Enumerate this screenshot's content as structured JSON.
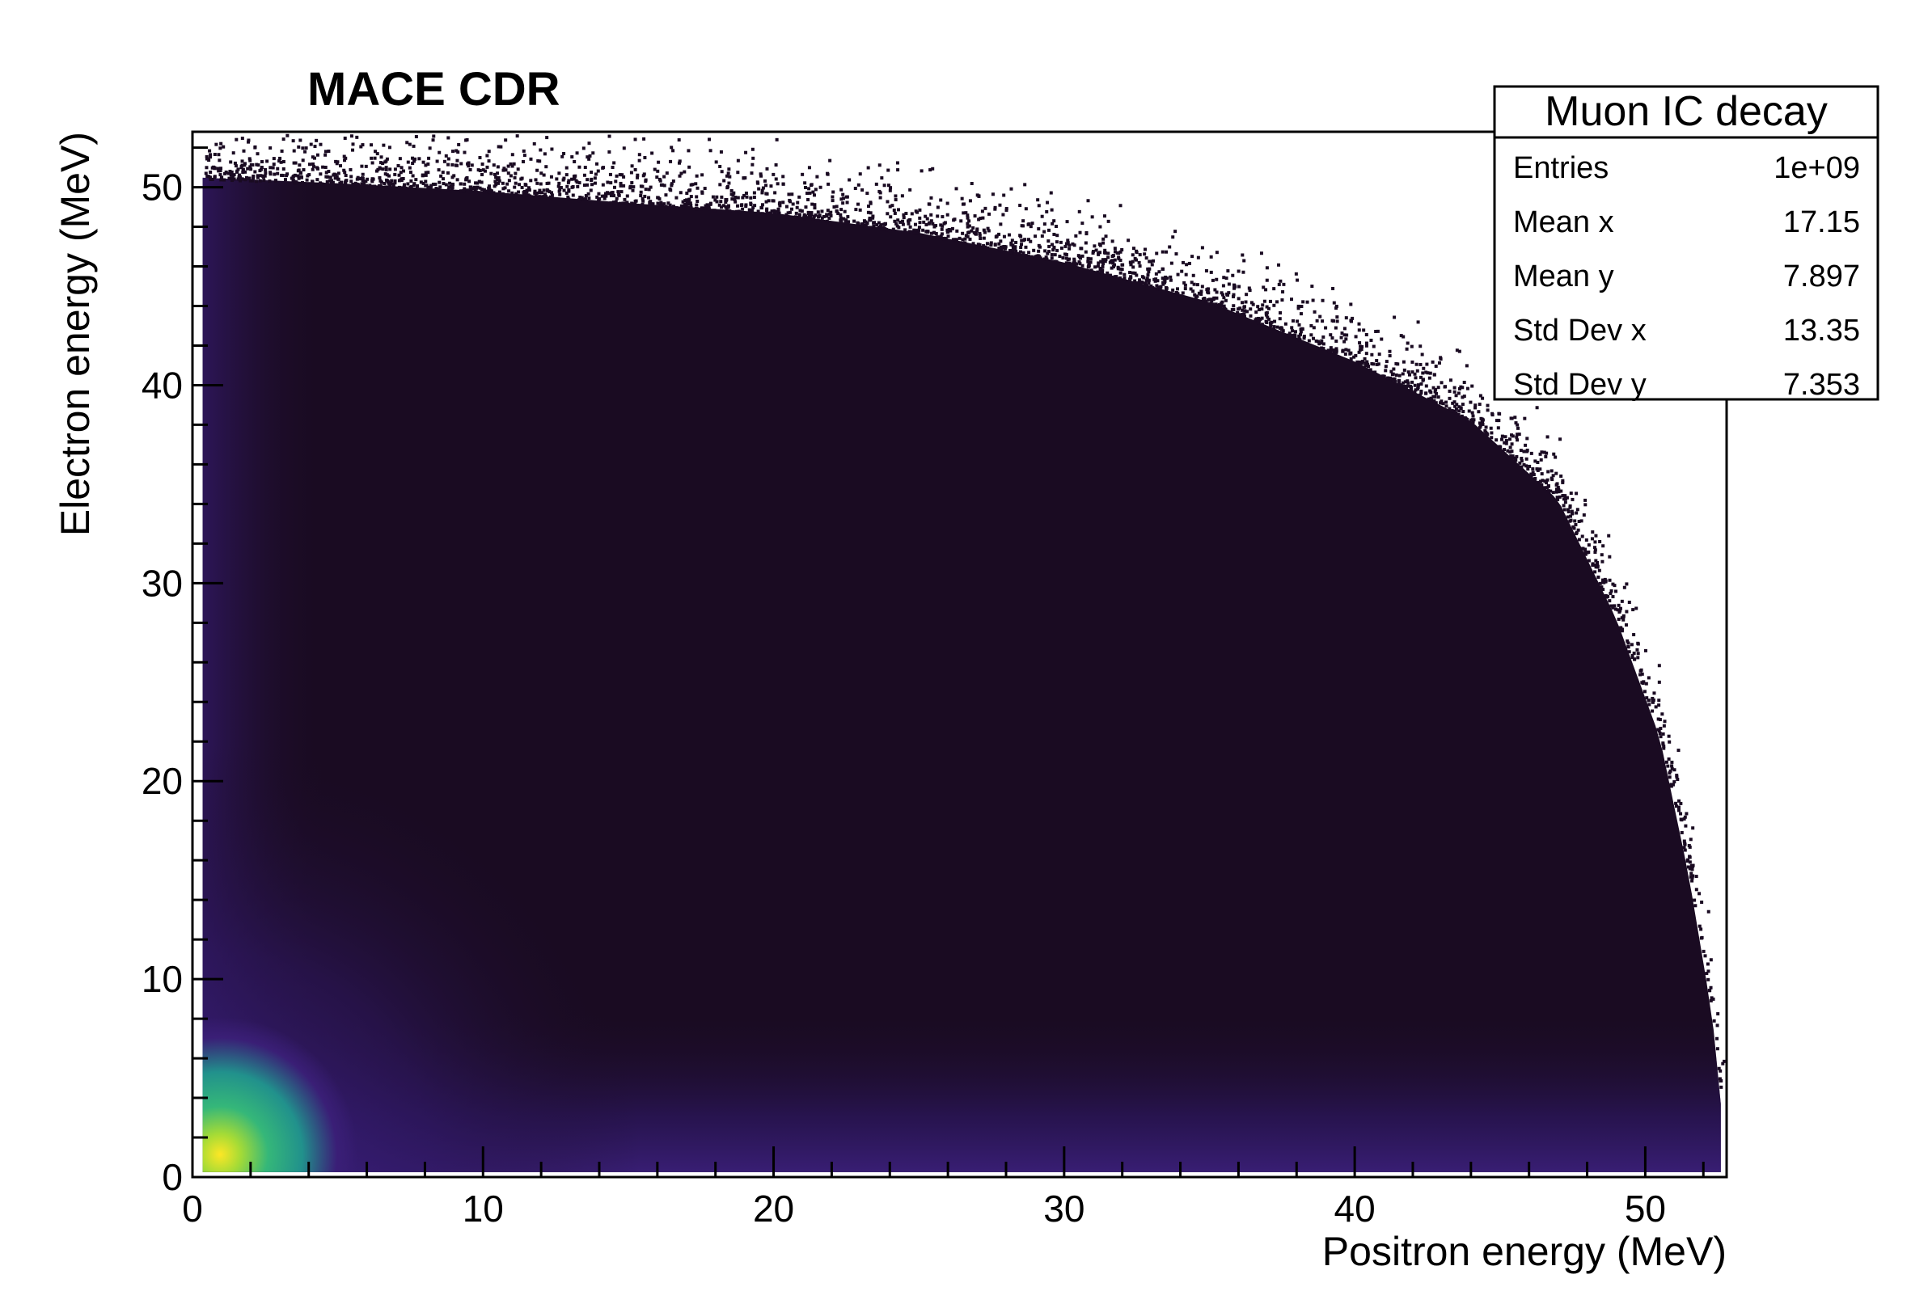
{
  "chart_data": {
    "type": "heatmap",
    "title": "MACE CDR",
    "xlabel": "Positron energy (MeV)",
    "ylabel": "Electron energy (MeV)",
    "xlim": [
      0,
      52.8
    ],
    "ylim": [
      0,
      52.8
    ],
    "xticks": [
      "0",
      "10",
      "20",
      "30",
      "40",
      "50"
    ],
    "yticks": [
      "0",
      "10",
      "20",
      "30",
      "40",
      "50"
    ],
    "colormap": [
      "#0d0716",
      "#1b0c24",
      "#2a1650",
      "#3b1f78",
      "#2f6a8c",
      "#1f9e86",
      "#6dcd59",
      "#fde725"
    ],
    "peak_location": [
      1,
      1
    ],
    "kinematic_edge_y_at_x": [
      [
        0,
        52.3
      ],
      [
        5,
        52.0
      ],
      [
        10,
        51.6
      ],
      [
        15,
        51.0
      ],
      [
        20,
        50.5
      ],
      [
        25,
        49.5
      ],
      [
        30,
        48.0
      ],
      [
        35,
        46.0
      ],
      [
        40,
        43.0
      ],
      [
        44,
        40.0
      ],
      [
        47,
        36.0
      ],
      [
        49,
        30.0
      ],
      [
        50.5,
        24.0
      ],
      [
        51.5,
        17.0
      ],
      [
        52.3,
        10.0
      ],
      [
        52.7,
        4.0
      ],
      [
        52.8,
        0.5
      ]
    ],
    "stats_box": {
      "title": "Muon IC decay",
      "rows": [
        {
          "label": "Entries",
          "value": "1e+09"
        },
        {
          "label": "Mean x",
          "value": "17.15"
        },
        {
          "label": "Mean y",
          "value": "7.897"
        },
        {
          "label": "Std Dev x",
          "value": "13.35"
        },
        {
          "label": "Std Dev y",
          "value": "7.353"
        }
      ]
    }
  }
}
